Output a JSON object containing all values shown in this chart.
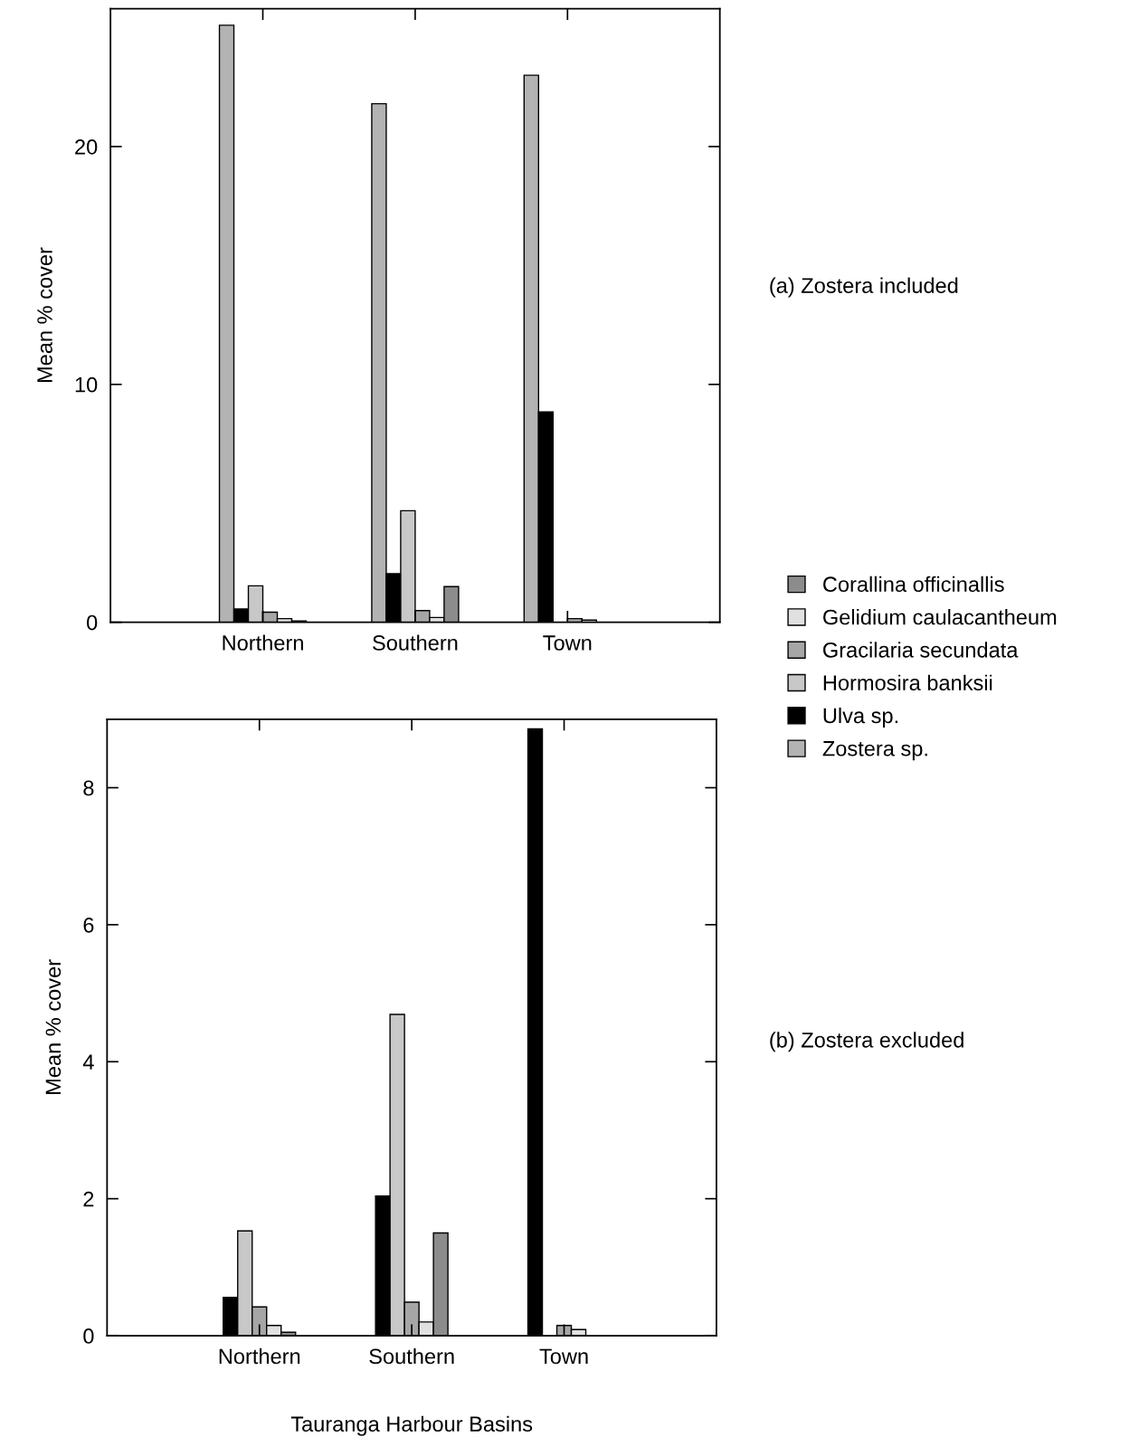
{
  "chart_data": [
    {
      "type": "bar",
      "ylabel": "Mean % cover",
      "annotations": [
        "(a) Zostera included"
      ],
      "categories": [
        "Northern",
        "Southern",
        "Town"
      ],
      "ylim": [
        0,
        25.8
      ],
      "yticks": [
        0,
        10,
        20
      ],
      "legend": "right",
      "series": [
        {
          "name": "Zostera sp.",
          "color": "#b3b3b3",
          "values": [
            25.1,
            21.8,
            23.0
          ]
        },
        {
          "name": "Ulva sp.",
          "color": "#000000",
          "values": [
            0.56,
            2.04,
            8.84
          ]
        },
        {
          "name": "Hormosira banksii",
          "color": "#c8c8c8",
          "values": [
            1.53,
            4.69,
            null
          ]
        },
        {
          "name": "Gracilaria secundata",
          "color": "#a6a6a6",
          "values": [
            0.42,
            0.49,
            0.15
          ]
        },
        {
          "name": "Gelidium caulacantheum",
          "color": "#e0e0e0",
          "values": [
            0.15,
            0.2,
            0.09
          ]
        },
        {
          "name": "Corallina officinallis",
          "color": "#8c8c8c",
          "values": [
            0.05,
            1.5,
            null
          ]
        }
      ]
    },
    {
      "type": "bar",
      "ylabel": "Mean % cover",
      "xlabel": "Tauranga Harbour Basins",
      "annotations": [
        "(b) Zostera excluded"
      ],
      "categories": [
        "Northern",
        "Southern",
        "Town"
      ],
      "ylim": [
        0,
        9.0
      ],
      "yticks": [
        0,
        2,
        4,
        6,
        8
      ],
      "series": [
        {
          "color": "#000000",
          "values": [
            0.56,
            2.04,
            8.86
          ]
        },
        {
          "color": "#c8c8c8",
          "values": [
            1.53,
            4.69,
            null
          ]
        },
        {
          "color": "#a6a6a6",
          "values": [
            0.42,
            0.49,
            0.15
          ]
        },
        {
          "color": "#e0e0e0",
          "values": [
            0.15,
            0.2,
            0.09
          ]
        },
        {
          "color": "#8c8c8c",
          "values": [
            0.05,
            1.5,
            null
          ]
        }
      ]
    }
  ]
}
